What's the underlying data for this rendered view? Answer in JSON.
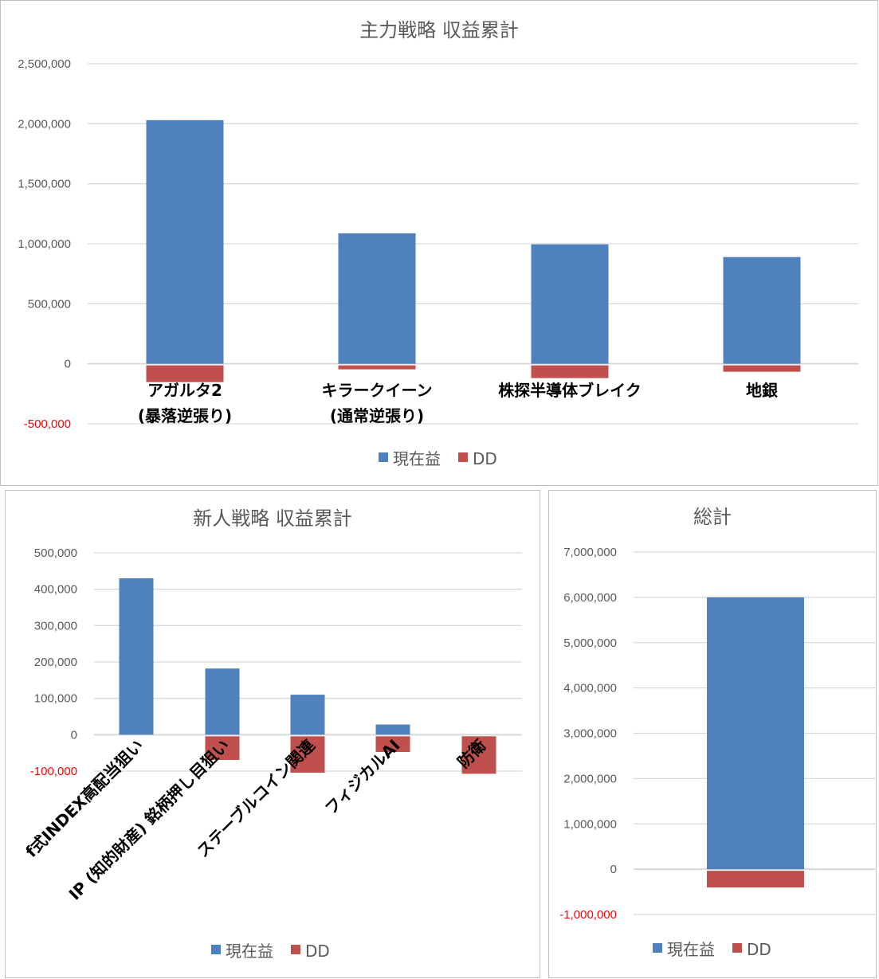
{
  "colors": {
    "current": "#4f81bd",
    "dd": "#c0504d",
    "grid": "#d9d9d9",
    "negative_tick": "#ff0000"
  },
  "chart_data": [
    {
      "type": "bar",
      "title": "主力戦略 収益累計",
      "categories": [
        "アガルタ2\n(暴落逆張り)",
        "キラークイーン\n(通常逆張り)",
        "株探半導体ブレイク",
        "地銀"
      ],
      "series": [
        {
          "name": "現在益",
          "values": [
            2030000,
            1087000,
            995000,
            889000
          ]
        },
        {
          "name": "DD",
          "values": [
            -139000,
            -33000,
            -106000,
            -53000
          ]
        }
      ],
      "ylim": [
        -500000,
        2500000
      ],
      "yticks": [
        "-500,000",
        "0",
        "500,000",
        "1,000,000",
        "1,500,000",
        "2,000,000",
        "2,500,000"
      ],
      "ytick_values": [
        -500000,
        0,
        500000,
        1000000,
        1500000,
        2000000,
        2500000
      ],
      "grid": true,
      "legend": "bottom",
      "label_rotation": 0
    },
    {
      "type": "bar",
      "title": "新人戦略 収益累計",
      "categories": [
        "f式INDEX高配当狙い",
        "IP (知的財産) 銘柄押し目狙い",
        "ステーブルコイン関連",
        "フィジカルAI",
        "防衛"
      ],
      "series": [
        {
          "name": "現在益",
          "values": [
            430000,
            182000,
            110000,
            28000,
            0
          ]
        },
        {
          "name": "DD",
          "values": [
            0,
            -65000,
            -100000,
            -43000,
            -103000
          ]
        }
      ],
      "ylim": [
        -100000,
        500000
      ],
      "yticks": [
        "-100,000",
        "0",
        "100,000",
        "200,000",
        "300,000",
        "400,000",
        "500,000"
      ],
      "ytick_values": [
        -100000,
        0,
        100000,
        200000,
        300000,
        400000,
        500000
      ],
      "grid": true,
      "legend": "bottom",
      "label_rotation": -45
    },
    {
      "type": "bar",
      "title": "総計",
      "categories": [
        ""
      ],
      "series": [
        {
          "name": "現在益",
          "values": [
            6000000
          ]
        },
        {
          "name": "DD",
          "values": [
            -369000
          ]
        }
      ],
      "ylim": [
        -1000000,
        7000000
      ],
      "yticks": [
        "-1,000,000",
        "0",
        "1,000,000",
        "2,000,000",
        "3,000,000",
        "4,000,000",
        "5,000,000",
        "6,000,000",
        "7,000,000"
      ],
      "ytick_values": [
        -1000000,
        0,
        1000000,
        2000000,
        3000000,
        4000000,
        5000000,
        6000000,
        7000000
      ],
      "grid": true,
      "legend": "bottom",
      "label_rotation": 0
    }
  ]
}
